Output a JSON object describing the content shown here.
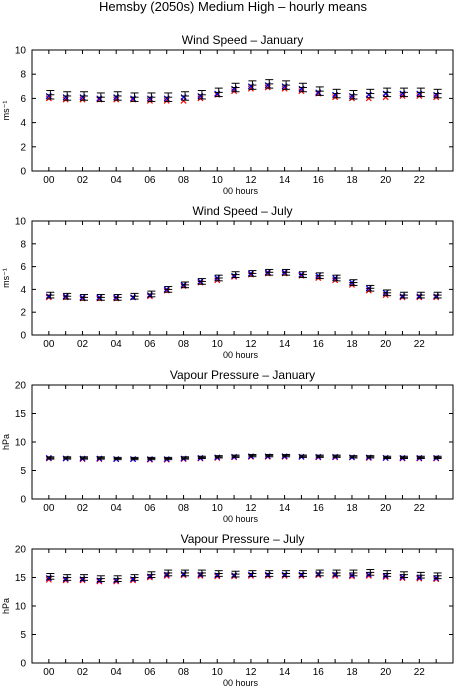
{
  "figure_title": "Hemsby (2050s) Medium High – hourly means",
  "colors": {
    "red_series": "#ff0000",
    "blue_series": "#0000ff",
    "errorbar": "#000000"
  },
  "chart_data": [
    {
      "type": "scatter",
      "title": "Wind Speed – January",
      "xlabel": "00 hours",
      "ylabel": "ms⁻¹",
      "ylim": [
        0,
        10
      ],
      "yticks": [
        "0",
        "2",
        "4",
        "6",
        "8",
        "10"
      ],
      "xticks": [
        "00",
        "02",
        "04",
        "06",
        "08",
        "10",
        "12",
        "14",
        "16",
        "18",
        "20",
        "22"
      ],
      "x": [
        0,
        1,
        2,
        3,
        4,
        5,
        6,
        7,
        8,
        9,
        10,
        11,
        12,
        13,
        14,
        15,
        16,
        17,
        18,
        19,
        20,
        21,
        22,
        23
      ],
      "series": [
        {
          "values": [
            6.0,
            5.9,
            5.9,
            5.9,
            5.9,
            5.9,
            5.8,
            5.8,
            5.8,
            6.0,
            6.3,
            6.6,
            6.8,
            6.9,
            6.8,
            6.6,
            6.4,
            6.1,
            6.0,
            6.0,
            6.1,
            6.2,
            6.2,
            6.1
          ],
          "color": "red"
        },
        {
          "values": [
            6.2,
            6.1,
            6.1,
            6.0,
            6.1,
            6.0,
            6.0,
            6.0,
            6.1,
            6.2,
            6.4,
            6.8,
            7.0,
            7.1,
            7.0,
            6.8,
            6.5,
            6.3,
            6.2,
            6.3,
            6.4,
            6.4,
            6.4,
            6.3
          ],
          "color": "blue"
        }
      ],
      "errorbars": [
        {
          "center": [
            6.3,
            6.2,
            6.2,
            6.1,
            6.2,
            6.1,
            6.1,
            6.1,
            6.2,
            6.3,
            6.5,
            6.9,
            7.1,
            7.2,
            7.1,
            6.9,
            6.6,
            6.4,
            6.3,
            6.4,
            6.5,
            6.5,
            6.5,
            6.4
          ],
          "half": 0.35
        }
      ]
    },
    {
      "type": "scatter",
      "title": "Wind Speed – July",
      "xlabel": "00 hours",
      "ylabel": "ms⁻¹",
      "ylim": [
        0,
        10
      ],
      "yticks": [
        "0",
        "2",
        "4",
        "6",
        "8",
        "10"
      ],
      "xticks": [
        "00",
        "02",
        "04",
        "06",
        "08",
        "10",
        "12",
        "14",
        "16",
        "18",
        "20",
        "22"
      ],
      "x": [
        0,
        1,
        2,
        3,
        4,
        5,
        6,
        7,
        8,
        9,
        10,
        11,
        12,
        13,
        14,
        15,
        16,
        17,
        18,
        19,
        20,
        21,
        22,
        23
      ],
      "series": [
        {
          "values": [
            3.3,
            3.3,
            3.2,
            3.2,
            3.2,
            3.3,
            3.4,
            3.9,
            4.3,
            4.6,
            4.8,
            5.1,
            5.3,
            5.4,
            5.4,
            5.2,
            5.0,
            4.8,
            4.4,
            3.9,
            3.5,
            3.3,
            3.3,
            3.3
          ],
          "color": "red"
        },
        {
          "values": [
            3.4,
            3.4,
            3.3,
            3.3,
            3.3,
            3.3,
            3.5,
            4.0,
            4.4,
            4.7,
            5.0,
            5.2,
            5.4,
            5.5,
            5.5,
            5.3,
            5.2,
            5.0,
            4.6,
            4.1,
            3.7,
            3.4,
            3.4,
            3.4
          ],
          "color": "blue"
        }
      ],
      "errorbars": [
        {
          "center": [
            3.5,
            3.4,
            3.3,
            3.3,
            3.3,
            3.4,
            3.6,
            4.0,
            4.4,
            4.7,
            5.0,
            5.3,
            5.4,
            5.5,
            5.5,
            5.3,
            5.2,
            5.0,
            4.6,
            4.1,
            3.7,
            3.5,
            3.5,
            3.5
          ],
          "half": 0.25
        }
      ]
    },
    {
      "type": "scatter",
      "title": "Vapour Pressure – January",
      "xlabel": "00 hours",
      "ylabel": "hPa",
      "ylim": [
        0,
        20
      ],
      "yticks": [
        "0",
        "5",
        "10",
        "15",
        "20"
      ],
      "xticks": [
        "00",
        "02",
        "04",
        "06",
        "08",
        "10",
        "12",
        "14",
        "16",
        "18",
        "20",
        "22"
      ],
      "x": [
        0,
        1,
        2,
        3,
        4,
        5,
        6,
        7,
        8,
        9,
        10,
        11,
        12,
        13,
        14,
        15,
        16,
        17,
        18,
        19,
        20,
        21,
        22,
        23
      ],
      "series": [
        {
          "values": [
            7.1,
            7.1,
            7.0,
            7.0,
            7.0,
            7.0,
            6.9,
            6.9,
            7.0,
            7.1,
            7.2,
            7.3,
            7.4,
            7.4,
            7.4,
            7.4,
            7.3,
            7.3,
            7.3,
            7.2,
            7.2,
            7.1,
            7.1,
            7.1
          ],
          "color": "red"
        },
        {
          "values": [
            7.2,
            7.1,
            7.1,
            7.1,
            7.0,
            7.0,
            7.0,
            7.0,
            7.1,
            7.2,
            7.3,
            7.4,
            7.5,
            7.5,
            7.5,
            7.4,
            7.4,
            7.4,
            7.3,
            7.3,
            7.2,
            7.2,
            7.2,
            7.2
          ],
          "color": "blue"
        }
      ],
      "errorbars": [
        {
          "center": [
            7.2,
            7.2,
            7.2,
            7.2,
            7.1,
            7.1,
            7.1,
            7.1,
            7.2,
            7.3,
            7.4,
            7.5,
            7.6,
            7.6,
            7.6,
            7.5,
            7.5,
            7.5,
            7.4,
            7.4,
            7.3,
            7.3,
            7.3,
            7.3
          ],
          "half": 0.2
        }
      ]
    },
    {
      "type": "scatter",
      "title": "Vapour Pressure – July",
      "xlabel": "00 hours",
      "ylabel": "hPa",
      "ylim": [
        0,
        20
      ],
      "yticks": [
        "0",
        "5",
        "10",
        "15",
        "20"
      ],
      "xticks": [
        "00",
        "02",
        "04",
        "06",
        "08",
        "10",
        "12",
        "14",
        "16",
        "18",
        "20",
        "22"
      ],
      "x": [
        0,
        1,
        2,
        3,
        4,
        5,
        6,
        7,
        8,
        9,
        10,
        11,
        12,
        13,
        14,
        15,
        16,
        17,
        18,
        19,
        20,
        21,
        22,
        23
      ],
      "series": [
        {
          "values": [
            14.6,
            14.5,
            14.5,
            14.3,
            14.3,
            14.5,
            15.0,
            15.3,
            15.4,
            15.3,
            15.2,
            15.2,
            15.3,
            15.3,
            15.3,
            15.3,
            15.4,
            15.3,
            15.2,
            15.3,
            15.1,
            14.9,
            14.8,
            14.7
          ],
          "color": "red"
        },
        {
          "values": [
            14.9,
            14.7,
            14.7,
            14.5,
            14.5,
            14.7,
            15.2,
            15.5,
            15.6,
            15.5,
            15.4,
            15.4,
            15.5,
            15.5,
            15.5,
            15.5,
            15.6,
            15.5,
            15.4,
            15.5,
            15.3,
            15.1,
            15.0,
            14.9
          ],
          "color": "blue"
        }
      ],
      "errorbars": [
        {
          "center": [
            15.2,
            15.0,
            15.0,
            14.8,
            14.8,
            15.0,
            15.5,
            15.8,
            15.8,
            15.8,
            15.7,
            15.6,
            15.7,
            15.7,
            15.7,
            15.7,
            15.8,
            15.8,
            15.8,
            15.9,
            15.7,
            15.5,
            15.4,
            15.3
          ],
          "half": 0.5
        }
      ]
    }
  ]
}
